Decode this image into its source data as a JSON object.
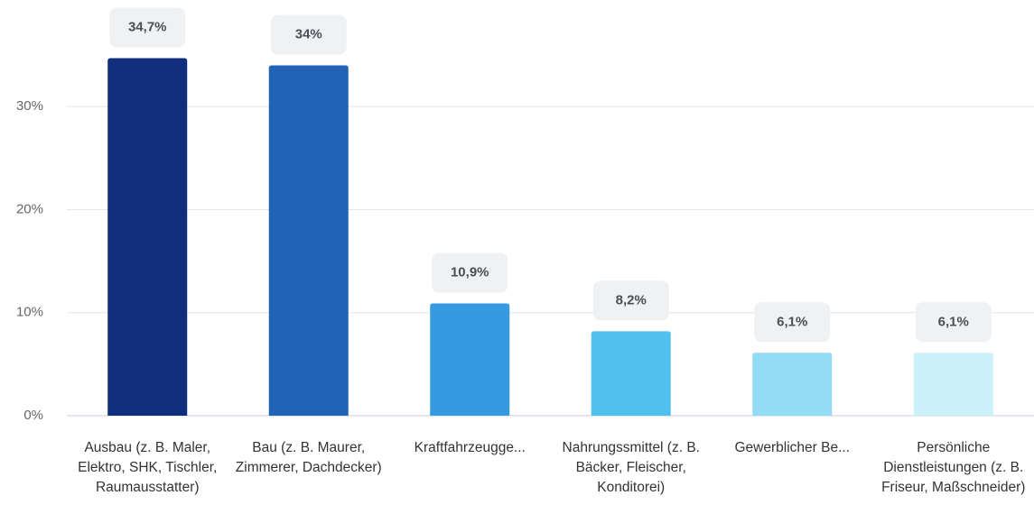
{
  "chart_data": {
    "type": "bar",
    "categories": [
      "Ausbau (z. B. Maler, Elektro, SHK, Tischler, Raumausstatter)",
      "Bau (z. B. Maurer, Zimmerer, Dachdecker)",
      "Kraftfahrzeugge...",
      "Nahrungssmittel (z. B. Bäcker, Fleischer, Konditorei)",
      "Gewerblicher Be...",
      "Persönliche Dienstleistungen (z. B. Friseur, Maßschneider)"
    ],
    "values": [
      34.7,
      34,
      10.9,
      8.2,
      6.1,
      6.1
    ],
    "value_labels": [
      "34,7%",
      "34%",
      "10,9%",
      "8,2%",
      "6,1%",
      "6,1%"
    ],
    "colors": [
      "#112e7c",
      "#2163b5",
      "#359ae0",
      "#50c1ee",
      "#92dcf5",
      "#cdf1fb"
    ],
    "ylim": [
      0,
      40
    ],
    "yticks": [
      {
        "value": 0,
        "label": "0%"
      },
      {
        "value": 10,
        "label": "10%"
      },
      {
        "value": 20,
        "label": "20%"
      },
      {
        "value": 30,
        "label": "30%"
      }
    ],
    "grid": true
  }
}
